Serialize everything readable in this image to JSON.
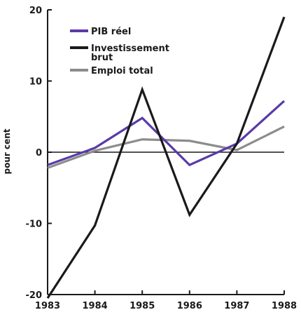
{
  "chart_data": {
    "type": "line",
    "title": "",
    "xlabel": "",
    "ylabel": "pour cent",
    "categories": [
      "1983",
      "1984",
      "1985",
      "1986",
      "1987",
      "1988"
    ],
    "x": [
      1983,
      1984,
      1985,
      1986,
      1987,
      1988
    ],
    "ylim": [
      -20,
      20
    ],
    "yticks": [
      {
        "value": -20,
        "label": "-20"
      },
      {
        "value": -10,
        "label": "-10"
      },
      {
        "value": 0,
        "label": "0"
      },
      {
        "value": 10,
        "label": "10"
      },
      {
        "value": 20,
        "label": "20"
      }
    ],
    "grid": false,
    "zero_line": true,
    "legend_position": "top-left",
    "series": [
      {
        "name": "PIB réel",
        "color": "#5a3aa8",
        "values": [
          -1.8,
          0.6,
          4.8,
          -1.8,
          1.2,
          7.2
        ]
      },
      {
        "name": "Investissement brut",
        "color": "#1a1a1a",
        "values": [
          -20.5,
          -10.3,
          8.8,
          -8.8,
          1.2,
          19.0
        ]
      },
      {
        "name": "Emploi total",
        "color": "#8c8c8c",
        "values": [
          -2.2,
          0.2,
          1.8,
          1.6,
          0.3,
          3.6
        ]
      }
    ],
    "legend_labels": [
      [
        "PIB réel"
      ],
      [
        "Investissement",
        "brut"
      ],
      [
        "Emploi total"
      ]
    ]
  }
}
